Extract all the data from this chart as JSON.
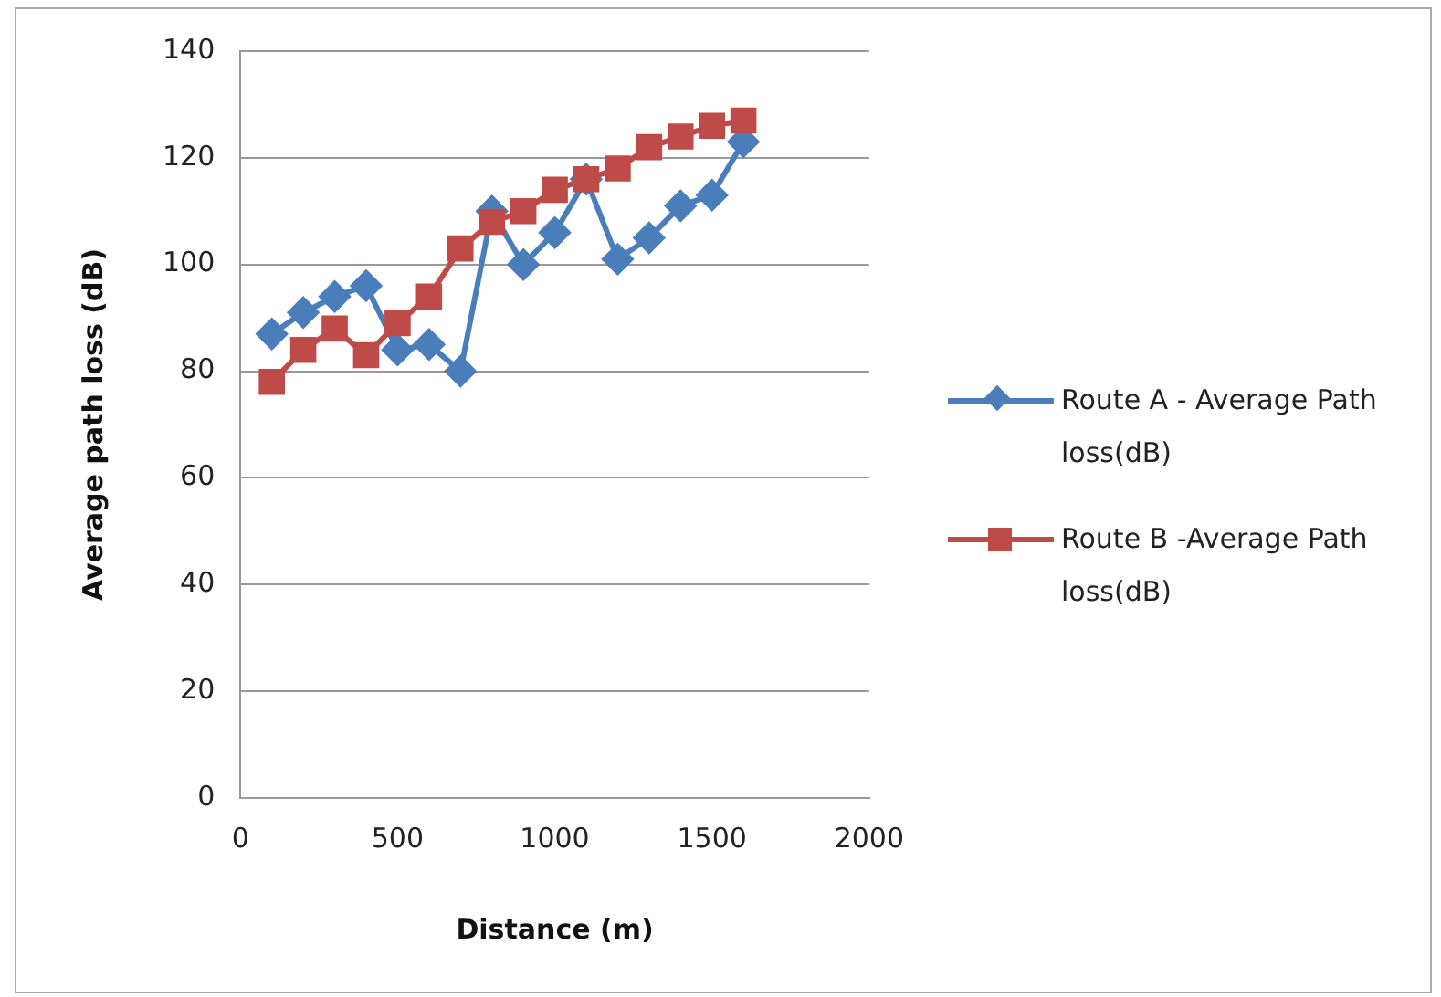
{
  "chart_data": {
    "type": "line",
    "xlabel": "Distance (m)",
    "ylabel": "Average path loss (dB)",
    "x": [
      100,
      200,
      300,
      400,
      500,
      600,
      700,
      800,
      900,
      1000,
      1100,
      1200,
      1300,
      1400,
      1500,
      1600
    ],
    "series": [
      {
        "name": "Route A - Average Path loss(dB)",
        "color": "#4a7ebb",
        "marker": "diamond",
        "values": [
          87,
          91,
          94,
          96,
          84,
          85,
          80,
          110,
          100,
          106,
          116,
          101,
          105,
          111,
          113,
          123
        ]
      },
      {
        "name": "Route B -Average Path loss(dB)",
        "color": "#be4b48",
        "marker": "square",
        "values": [
          78,
          84,
          88,
          83,
          89,
          94,
          103,
          108,
          110,
          114,
          116,
          118,
          122,
          124,
          126,
          127
        ]
      }
    ],
    "xlim": [
      0,
      2000
    ],
    "xticks": [
      0,
      500,
      1000,
      1500,
      2000
    ],
    "ylim": [
      0,
      140
    ],
    "yticks": [
      0,
      20,
      40,
      60,
      80,
      100,
      120,
      140
    ],
    "grid": "y",
    "legend": "right",
    "line_style": "solid"
  }
}
